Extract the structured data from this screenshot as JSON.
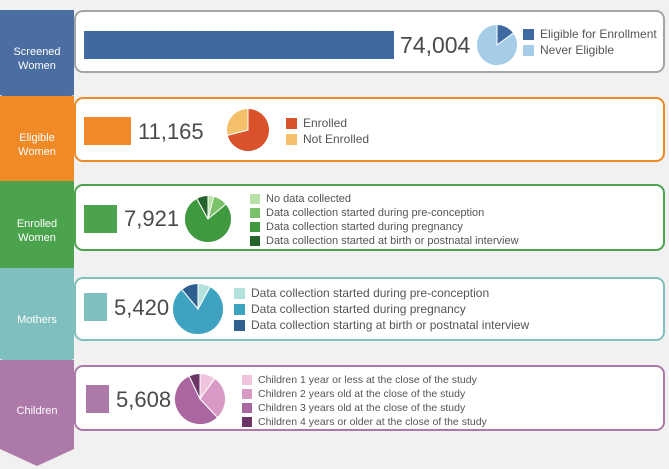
{
  "chart_data": [
    {
      "type": "bar",
      "stage": "Screened Women",
      "value": 74004,
      "value_label": "74,004",
      "color": "#3e6aa1",
      "pie": {
        "slices": [
          {
            "label": "Eligible for Enrollment",
            "value": 15,
            "color": "#3e6aa1"
          },
          {
            "label": "Never Eligible",
            "value": 85,
            "color": "#a6cde8"
          }
        ]
      }
    },
    {
      "type": "bar",
      "stage": "Eligible Women",
      "value": 11165,
      "value_label": "11,165",
      "color": "#f28a2b",
      "pie": {
        "slices": [
          {
            "label": "Enrolled",
            "value": 71,
            "color": "#d9522b"
          },
          {
            "label": "Not Enrolled",
            "value": 29,
            "color": "#f4c06a"
          }
        ]
      }
    },
    {
      "type": "bar",
      "stage": "Enrolled Women",
      "value": 7921,
      "value_label": "7,921",
      "color": "#4ba34e",
      "pie": {
        "slices": [
          {
            "label": "No data collected",
            "value": 4,
            "color": "#b9e0a5"
          },
          {
            "label": "Data collection started during pre-conception",
            "value": 10,
            "color": "#79c26a"
          },
          {
            "label": "Data collection started during pregnancy",
            "value": 78,
            "color": "#3f9a3f"
          },
          {
            "label": "Data collection started at birth or postnatal interview",
            "value": 8,
            "color": "#25622c"
          }
        ]
      }
    },
    {
      "type": "bar",
      "stage": "Mothers",
      "value": 5420,
      "value_label": "5,420",
      "color": "#7fbfbd",
      "pie": {
        "slices": [
          {
            "label": "Data collection started during pre-conception",
            "value": 8,
            "color": "#b3e1db"
          },
          {
            "label": "Data collection started during pregnancy",
            "value": 81,
            "color": "#3ea3c1"
          },
          {
            "label": "Data collection starting at birth or postnatal interview",
            "value": 11,
            "color": "#2f5f8f"
          }
        ]
      }
    },
    {
      "type": "bar",
      "stage": "Children",
      "value": 5608,
      "value_label": "5,608",
      "color": "#ad79a8",
      "pie": {
        "slices": [
          {
            "label": "Children 1 year or less at the close of the study",
            "value": 10,
            "color": "#f0c4de"
          },
          {
            "label": "Children 2 years old at the close of the study",
            "value": 28,
            "color": "#d79ac5"
          },
          {
            "label": "Children 3 years old at the close of the study",
            "value": 55,
            "color": "#a9669f"
          },
          {
            "label": "Children 4 years or older at the close of the study",
            "value": 7,
            "color": "#6b3566"
          }
        ]
      }
    }
  ]
}
